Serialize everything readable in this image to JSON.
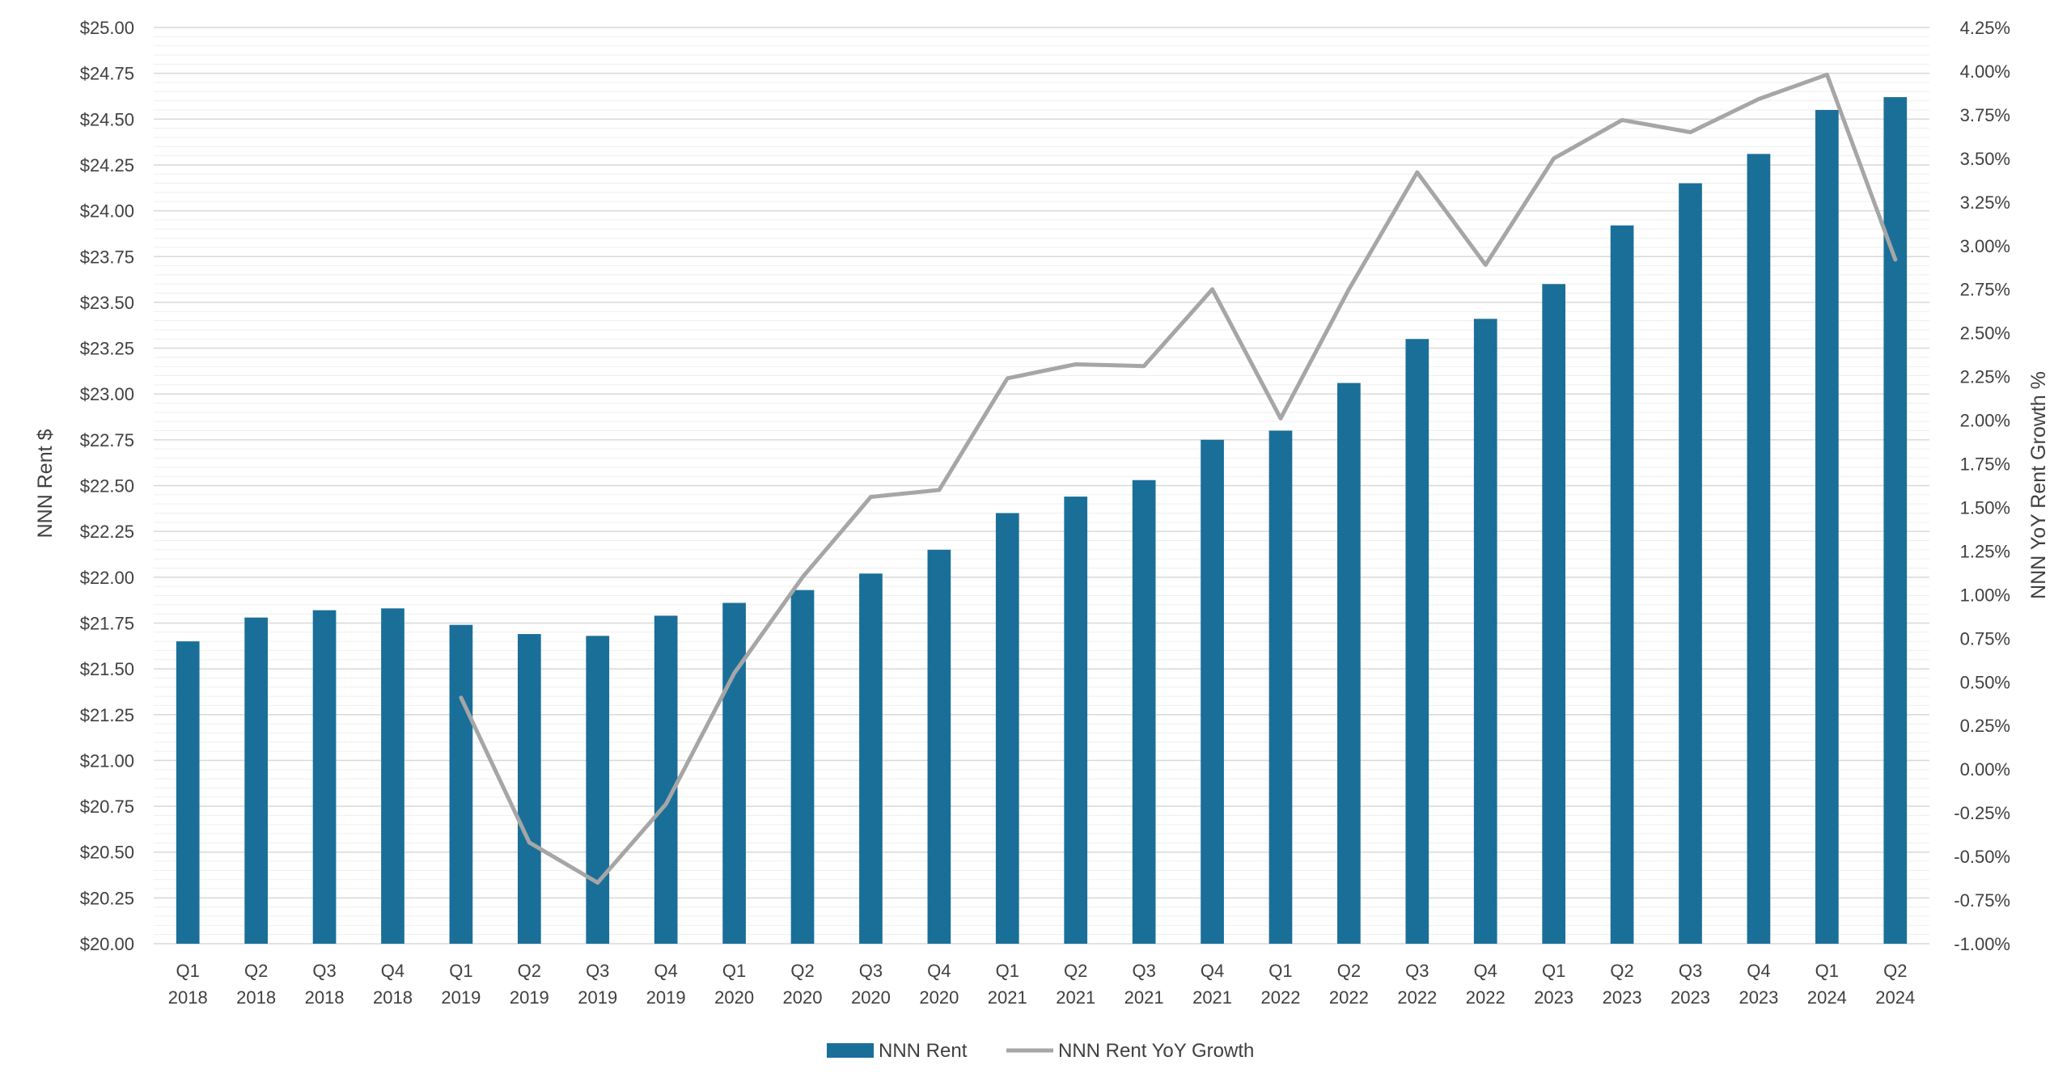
{
  "chart_data": {
    "type": "bar",
    "title": "",
    "categories": [
      "Q1 2018",
      "Q2 2018",
      "Q3 2018",
      "Q4 2018",
      "Q1 2019",
      "Q2 2019",
      "Q3 2019",
      "Q4 2019",
      "Q1 2020",
      "Q2 2020",
      "Q3 2020",
      "Q4 2020",
      "Q1 2021",
      "Q2 2021",
      "Q3 2021",
      "Q4 2021",
      "Q1 2022",
      "Q2 2022",
      "Q3 2022",
      "Q4 2022",
      "Q1 2023",
      "Q2 2023",
      "Q3 2023",
      "Q4 2023",
      "Q1 2024",
      "Q2 2024"
    ],
    "category_lines": [
      [
        "Q1",
        "2018"
      ],
      [
        "Q2",
        "2018"
      ],
      [
        "Q3",
        "2018"
      ],
      [
        "Q4",
        "2018"
      ],
      [
        "Q1",
        "2019"
      ],
      [
        "Q2",
        "2019"
      ],
      [
        "Q3",
        "2019"
      ],
      [
        "Q4",
        "2019"
      ],
      [
        "Q1",
        "2020"
      ],
      [
        "Q2",
        "2020"
      ],
      [
        "Q3",
        "2020"
      ],
      [
        "Q4",
        "2020"
      ],
      [
        "Q1",
        "2021"
      ],
      [
        "Q2",
        "2021"
      ],
      [
        "Q3",
        "2021"
      ],
      [
        "Q4",
        "2021"
      ],
      [
        "Q1",
        "2022"
      ],
      [
        "Q2",
        "2022"
      ],
      [
        "Q3",
        "2022"
      ],
      [
        "Q4",
        "2022"
      ],
      [
        "Q1",
        "2023"
      ],
      [
        "Q2",
        "2023"
      ],
      [
        "Q3",
        "2023"
      ],
      [
        "Q4",
        "2023"
      ],
      [
        "Q1",
        "2024"
      ],
      [
        "Q2",
        "2024"
      ]
    ],
    "series": [
      {
        "name": "NNN Rent",
        "type": "bar",
        "axis": "left",
        "color": "#1A6F99",
        "values": [
          21.65,
          21.78,
          21.82,
          21.83,
          21.74,
          21.69,
          21.68,
          21.79,
          21.86,
          21.93,
          22.02,
          22.15,
          22.35,
          22.44,
          22.53,
          22.75,
          22.8,
          23.06,
          23.3,
          23.41,
          23.6,
          23.92,
          24.15,
          24.31,
          24.55,
          24.62
        ]
      },
      {
        "name": "NNN Rent YoY Growth",
        "type": "line",
        "axis": "right",
        "color": "#A6A6A6",
        "values": [
          null,
          null,
          null,
          null,
          0.41,
          -0.42,
          -0.65,
          -0.2,
          0.55,
          1.1,
          1.56,
          1.6,
          2.24,
          2.32,
          2.31,
          2.75,
          2.01,
          2.75,
          3.42,
          2.89,
          3.5,
          3.72,
          3.65,
          3.84,
          3.98,
          2.92
        ]
      }
    ],
    "y_left": {
      "label": "NNN Rent $",
      "min": 20.0,
      "max": 25.0,
      "tick_labels": [
        "$25.00",
        "$24.75",
        "$24.50",
        "$24.25",
        "$24.00",
        "$23.75",
        "$23.50",
        "$23.25",
        "$23.00",
        "$22.75",
        "$22.50",
        "$22.25",
        "$22.00",
        "$21.75",
        "$21.50",
        "$21.25",
        "$21.00",
        "$20.75",
        "$20.50",
        "$20.25",
        "$20.00"
      ]
    },
    "y_right": {
      "label": "NNN YoY Rent Growth %",
      "min": -1.0,
      "max": 4.25,
      "tick_labels": [
        "4.25%",
        "4.00%",
        "3.75%",
        "3.50%",
        "3.25%",
        "3.00%",
        "2.75%",
        "2.50%",
        "2.25%",
        "2.00%",
        "1.75%",
        "1.50%",
        "1.25%",
        "1.00%",
        "0.75%",
        "0.50%",
        "0.25%",
        "0.00%",
        "-0.25%",
        "-0.50%",
        "-0.75%",
        "-1.00%"
      ]
    },
    "grid": true,
    "legend_position": "bottom"
  }
}
